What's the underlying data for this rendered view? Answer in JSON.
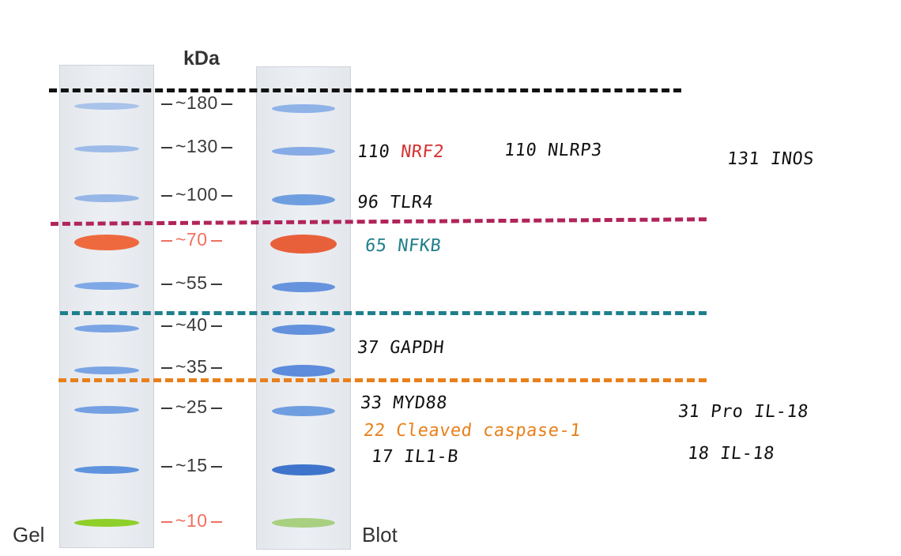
{
  "header": {
    "unit": "kDa"
  },
  "lanes": {
    "left_label": "Gel",
    "right_label": "Blot"
  },
  "markers": [
    {
      "text": "~180",
      "color": "#3a3a3a"
    },
    {
      "text": "~130",
      "color": "#3a3a3a"
    },
    {
      "text": "~100",
      "color": "#3a3a3a"
    },
    {
      "text": "~70",
      "color": "#f07060"
    },
    {
      "text": "~55",
      "color": "#3a3a3a"
    },
    {
      "text": "~40",
      "color": "#3a3a3a"
    },
    {
      "text": "~35",
      "color": "#3a3a3a"
    },
    {
      "text": "~25",
      "color": "#3a3a3a"
    },
    {
      "text": "~15",
      "color": "#3a3a3a"
    },
    {
      "text": "~10",
      "color": "#f07060"
    }
  ],
  "annotations": {
    "nrf2_num": "110",
    "nrf2_name": "NRF2",
    "nlrp3": "110 NLRP3",
    "inos": "131 INOS",
    "tlr4": "96 TLR4",
    "nfkb": "65 NFKB",
    "gapdh": "37 GAPDH",
    "myd88": "33 MYD88",
    "caspase": "22 Cleaved caspase-1",
    "il1b": "17 IL1-B",
    "pro_il18": "31 Pro IL-18",
    "il18": "18 IL-18"
  },
  "colors": {
    "black_line": "#111111",
    "magenta_line": "#b0245a",
    "teal_line": "#1f7f8c",
    "orange_line": "#e8801c",
    "nrf2": "#d63232",
    "nfkb": "#1f7f8c",
    "caspase": "#e8801c",
    "band_blue": "#6f9ee0",
    "band_orange": "#ee6a3e",
    "band_green": "#8fcf2a"
  }
}
